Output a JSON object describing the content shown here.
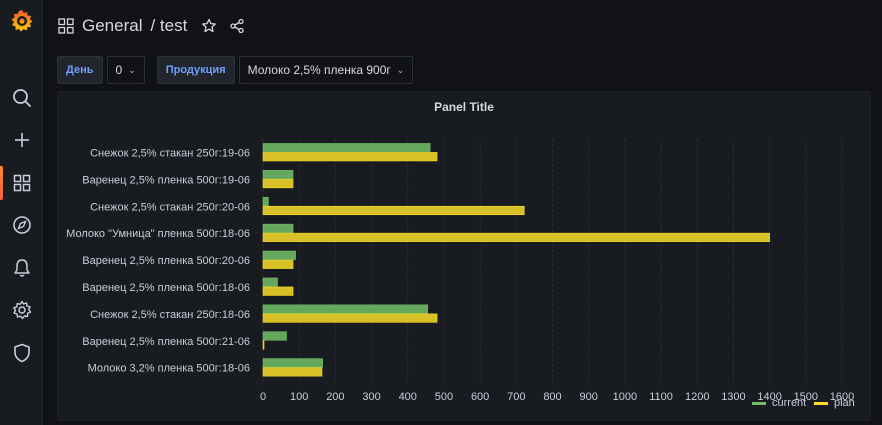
{
  "sidebar": {
    "logo": "grafana-logo",
    "items": [
      {
        "name": "search-icon"
      },
      {
        "name": "plus-icon"
      },
      {
        "name": "dashboards-icon"
      },
      {
        "name": "compass-icon"
      },
      {
        "name": "bell-icon"
      },
      {
        "name": "gear-icon"
      },
      {
        "name": "shield-icon"
      }
    ]
  },
  "header": {
    "folder": "General",
    "title": "/ test"
  },
  "variables": [
    {
      "label": "День",
      "value": "0"
    },
    {
      "label": "Продукция",
      "value": "Молоко 2,5% пленка 900г"
    }
  ],
  "colors": {
    "current": "#73bf69",
    "plan": "#fade2a"
  },
  "chart_data": {
    "type": "bar",
    "orientation": "horizontal",
    "title": "Panel Title",
    "categories": [
      "Снежок 2,5% стакан 250г:19-06",
      "Варенец 2,5% пленка 500г:19-06",
      "Снежок 2,5% стакан 250г:20-06",
      "Молоко \"Умница\" пленка 500г:18-06",
      "Варенец 2,5% пленка 500г:20-06",
      "Варенец 2,5% пленка 500г:18-06",
      "Снежок 2,5% стакан 250г:18-06",
      "Варенец 2,5% пленка 500г:21-06",
      "Молоко 3,2% пленка 500г:18-06"
    ],
    "series": [
      {
        "name": "current",
        "values": [
          462,
          83,
          15,
          83,
          90,
          40,
          455,
          65,
          165
        ]
      },
      {
        "name": "plan",
        "values": [
          481,
          83,
          722,
          1400,
          83,
          83,
          481,
          0,
          163
        ]
      }
    ],
    "xlim": [
      0,
      1600
    ],
    "xticks": [
      "0",
      "100",
      "200",
      "300",
      "400",
      "500",
      "600",
      "700",
      "800",
      "900",
      "1000",
      "1100",
      "1200",
      "1300",
      "1400",
      "1500",
      "1600"
    ],
    "legend_position": "bottom-right",
    "grid": true
  }
}
